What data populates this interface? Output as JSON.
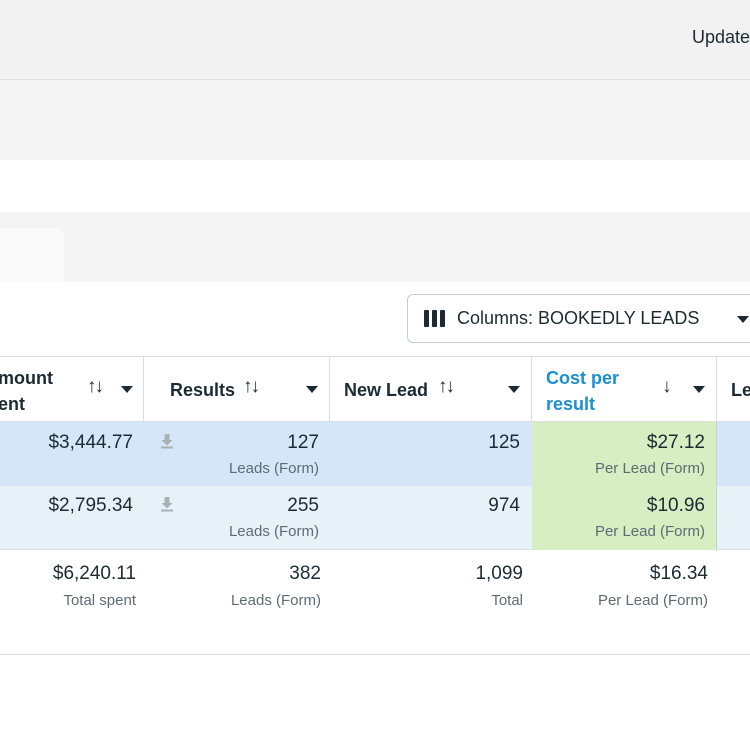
{
  "header": {
    "updated_label": "Updated"
  },
  "toolbar": {
    "columns_label": "Columns: BOOKEDLY LEADS"
  },
  "table": {
    "columns": [
      {
        "id": "amount_spent",
        "label_line1": "mount",
        "label_line2": "ent",
        "sort_icon": "sort-both-icon"
      },
      {
        "id": "results",
        "label": "Results",
        "sort_icon": "sort-both-icon"
      },
      {
        "id": "new_lead",
        "label": "New Lead",
        "sort_icon": "sort-both-icon"
      },
      {
        "id": "cost_per_result",
        "label_line1": "Cost per",
        "label_line2": "result",
        "sort_icon": "sort-down-icon"
      },
      {
        "id": "le",
        "label": "Le"
      }
    ],
    "rows": [
      {
        "amount_spent": "$3,444.77",
        "results": "127",
        "results_sub": "Leads (Form)",
        "new_lead": "125",
        "cost": "$27.12",
        "cost_sub": "Per Lead (Form)"
      },
      {
        "amount_spent": "$2,795.34",
        "results": "255",
        "results_sub": "Leads (Form)",
        "new_lead": "974",
        "cost": "$10.96",
        "cost_sub": "Per Lead (Form)"
      }
    ],
    "totals": {
      "amount_spent": "$6,240.11",
      "amount_spent_sub": "Total spent",
      "results": "382",
      "results_sub": "Leads (Form)",
      "new_lead": "1,099",
      "new_lead_sub": "Total",
      "cost": "$16.34",
      "cost_sub": "Per Lead (Form)"
    }
  },
  "colors": {
    "accent": "#1b8fd0",
    "row_selected": "#d4e6f8",
    "row_alt": "#e8f0f8",
    "highlight": "#d6eec2"
  }
}
